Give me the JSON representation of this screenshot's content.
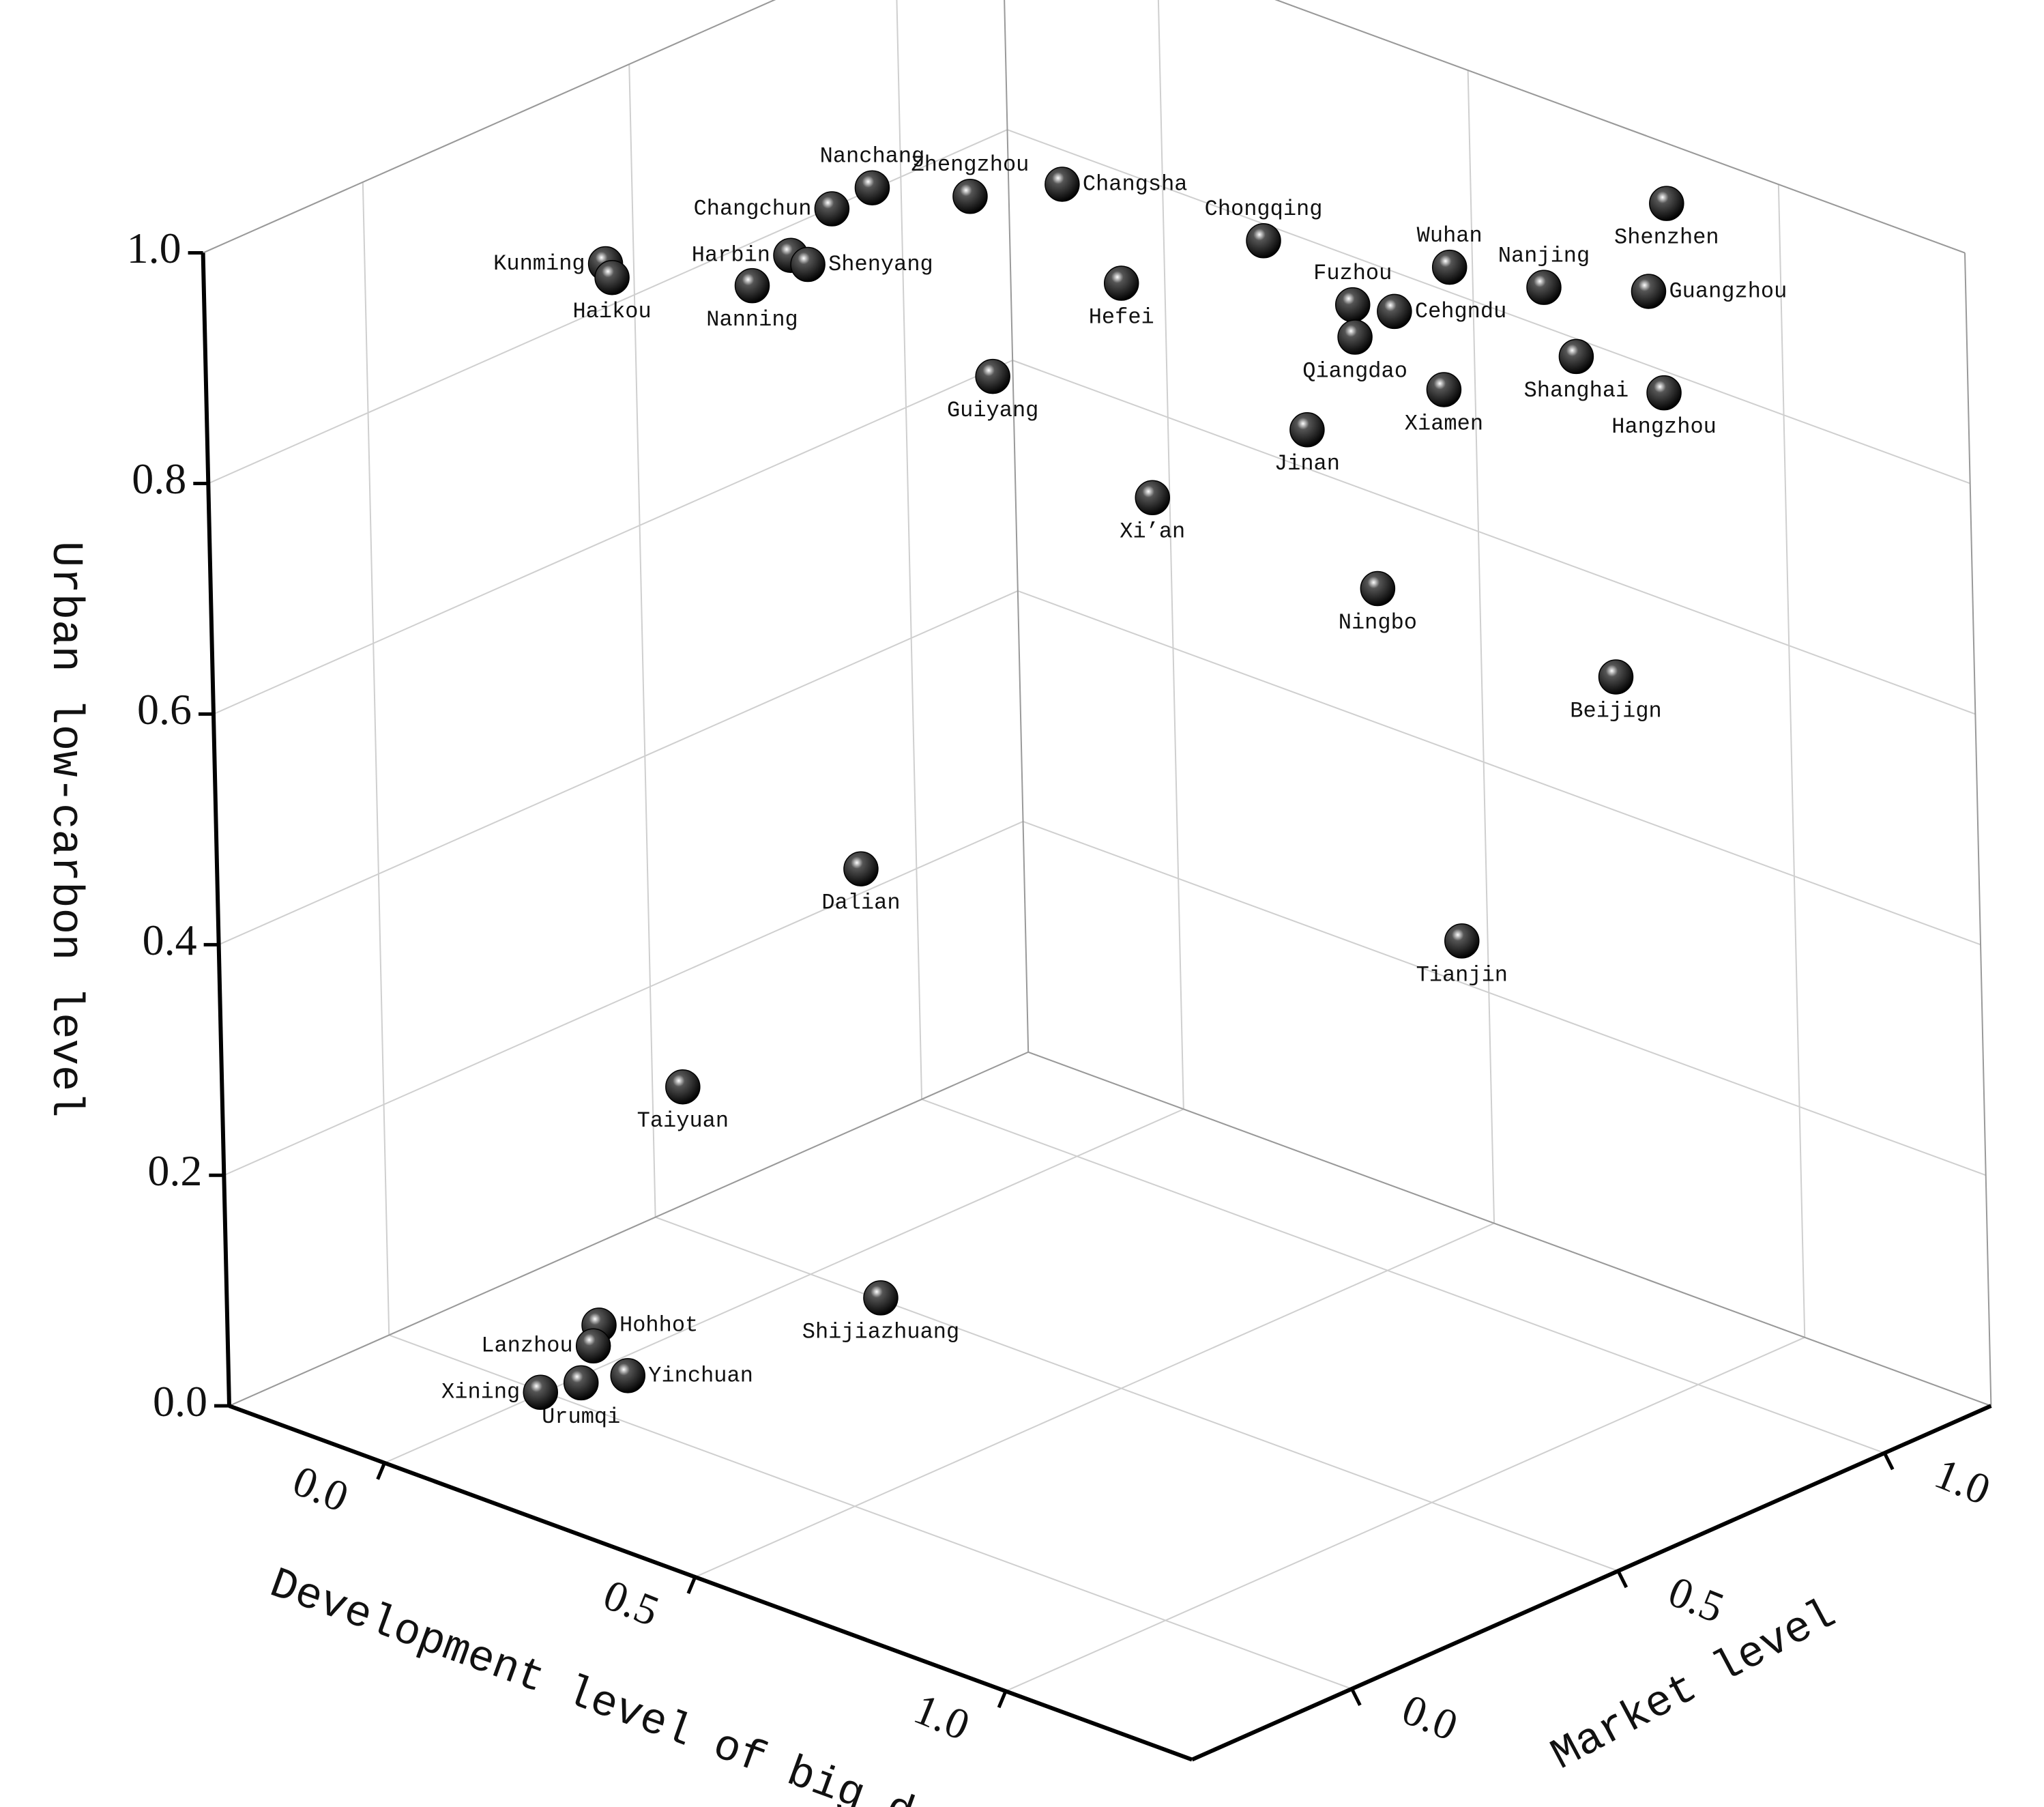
{
  "chart_data": {
    "type": "scatter3d",
    "xlabel": "Development level of big data",
    "ylabel": "Market level",
    "zlabel": "Urban low-carbon level",
    "xlim": [
      -0.25,
      1.3
    ],
    "ylim": [
      -0.3,
      1.2
    ],
    "zlim": [
      0,
      1
    ],
    "xticks": [
      {
        "value": 0,
        "label": "0.0"
      },
      0.5,
      {
        "value": 1,
        "label": "1.0"
      }
    ],
    "yticks": [
      {
        "value": 0,
        "label": "0.0"
      },
      0.5,
      {
        "value": 1,
        "label": "1.0"
      }
    ],
    "zticks": [
      {
        "value": 0,
        "label": "0.0"
      },
      0.2,
      0.4,
      0.6,
      0.8,
      {
        "value": 1,
        "label": "1.0"
      }
    ],
    "grid": true,
    "color": "#000000",
    "labels": [
      "Kunming",
      "Haikou",
      "Changchun",
      "Nanchang",
      "Zhengzhou",
      "Changsha",
      "Harbin",
      "Shenyang",
      "Nanning",
      "Guiyang",
      "Hefei",
      "Chongqing",
      "Wuhan",
      "Nanjing",
      "Shenzhen",
      "Guangzhou",
      "Fuzhou",
      "Cehgndu",
      "Qiangdao",
      "Xiamen",
      "Shanghai",
      "Hangzhou",
      "Jinan",
      "Xi’an",
      "Ningbo",
      "Beijign",
      "Tianjin",
      "Dalian",
      "Taiyuan",
      "Shijiazhuang",
      "Hohhot",
      "Lanzhou",
      "Yinchuan",
      "Urumqi",
      "Xining"
    ],
    "x": [
      0.01,
      0.02,
      0.1,
      0.14,
      0.22,
      0.3,
      0.11,
      0.12,
      0.09,
      0.32,
      0.41,
      0.52,
      0.69,
      0.79,
      0.87,
      0.89,
      0.61,
      0.66,
      0.63,
      0.72,
      0.84,
      0.92,
      0.61,
      0.47,
      0.71,
      0.91,
      0.79,
      0.28,
      0.14,
      0.34,
      0.1,
      0.09,
      0.11,
      0.06,
      0.02
    ],
    "y": [
      0.15,
      0.15,
      0.47,
      0.5,
      0.59,
      0.67,
      0.38,
      0.4,
      0.33,
      0.51,
      0.65,
      0.79,
      0.94,
      1.0,
      1.14,
      1.08,
      0.85,
      0.87,
      0.83,
      0.89,
      1.0,
      1.07,
      0.76,
      0.63,
      0.77,
      0.98,
      0.82,
      0.29,
      0.11,
      0.24,
      -0.01,
      -0.01,
      0.03,
      0.0,
      -0.03
    ],
    "z": [
      0.95,
      0.94,
      0.95,
      0.97,
      0.96,
      0.97,
      0.93,
      0.92,
      0.91,
      0.84,
      0.91,
      0.94,
      0.92,
      0.91,
      0.97,
      0.91,
      0.89,
      0.89,
      0.87,
      0.83,
      0.86,
      0.83,
      0.8,
      0.74,
      0.68,
      0.6,
      0.38,
      0.45,
      0.27,
      0.1,
      0.08,
      0.06,
      0.03,
      0.02,
      0.01
    ]
  }
}
